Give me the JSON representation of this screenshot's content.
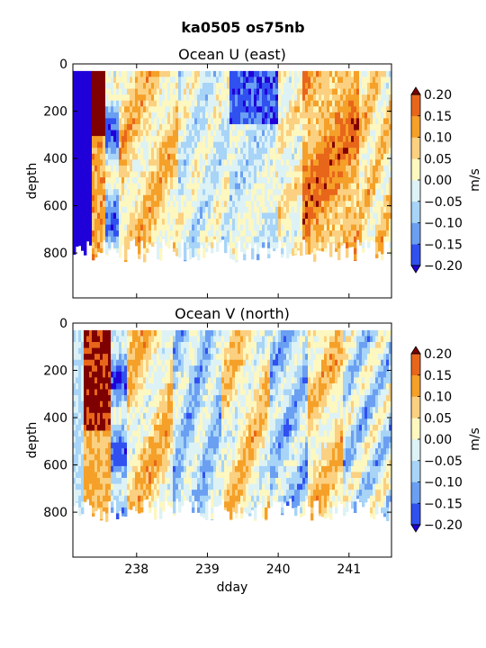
{
  "suptitle": "ka0505 os75nb",
  "chart_data": [
    {
      "type": "heatmap",
      "title": "Ocean U (east)",
      "ylabel": "depth",
      "xlabel": "",
      "x_range": [
        237.1,
        241.6
      ],
      "y_range": [
        0,
        990
      ],
      "y_inverted": true,
      "yticks": [
        0,
        200,
        400,
        600,
        800
      ],
      "xticks": [
        238,
        239,
        240,
        241
      ],
      "show_xtick_labels": false,
      "colorbar": {
        "label": "m/s",
        "levels": [
          -0.2,
          -0.15,
          -0.1,
          -0.05,
          0.0,
          0.05,
          0.1,
          0.15,
          0.2
        ],
        "tick_labels": [
          "−0.20",
          "−0.15",
          "−0.10",
          "−0.05",
          "0.00",
          "0.05",
          "0.10",
          "0.15",
          "0.20"
        ],
        "extend": "both",
        "colors": [
          "#2000d8",
          "#3050f0",
          "#6a9ff2",
          "#a7d4f7",
          "#ddf2f5",
          "#fdf7c0",
          "#fbd080",
          "#f5a028",
          "#e8661a",
          "#c8240a",
          "#7f0000"
        ]
      },
      "data_depth_min": 30,
      "data_depth_max_range": [
        740,
        840
      ]
    },
    {
      "type": "heatmap",
      "title": "Ocean V (north)",
      "ylabel": "depth",
      "xlabel": "dday",
      "x_range": [
        237.1,
        241.6
      ],
      "y_range": [
        0,
        990
      ],
      "y_inverted": true,
      "yticks": [
        0,
        200,
        400,
        600,
        800
      ],
      "xticks": [
        238,
        239,
        240,
        241
      ],
      "show_xtick_labels": true,
      "colorbar": {
        "label": "m/s",
        "levels": [
          -0.2,
          -0.15,
          -0.1,
          -0.05,
          0.0,
          0.05,
          0.1,
          0.15,
          0.2
        ],
        "tick_labels": [
          "−0.20",
          "−0.15",
          "−0.10",
          "−0.05",
          "0.00",
          "0.05",
          "0.10",
          "0.15",
          "0.20"
        ],
        "extend": "both",
        "colors": [
          "#2000d8",
          "#3050f0",
          "#6a9ff2",
          "#a7d4f7",
          "#ddf2f5",
          "#fdf7c0",
          "#fbd080",
          "#f5a028",
          "#e8661a",
          "#c8240a",
          "#7f0000"
        ]
      },
      "data_depth_min": 30,
      "data_depth_max_range": [
        740,
        840
      ]
    }
  ]
}
